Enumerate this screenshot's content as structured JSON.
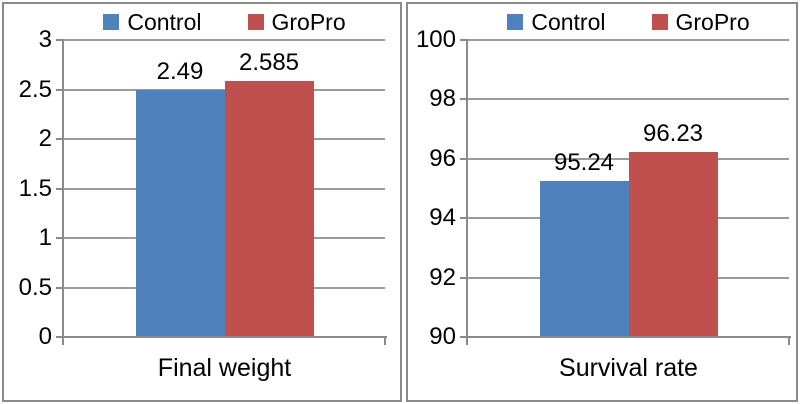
{
  "figure": {
    "background": "#ffffff",
    "panel_border_color": "#8a8a8a",
    "gridline_color": "#9b9b9b",
    "axis_color": "#8a8a8a",
    "text_color": "#000000"
  },
  "chart_data": [
    {
      "type": "bar",
      "title": "",
      "categories": [
        "Final weight"
      ],
      "xlabel": "Final weight",
      "ylabel": "",
      "series": [
        {
          "name": "Control",
          "values": [
            2.49
          ],
          "color": "#4F81BD",
          "data_labels": [
            "2.49"
          ]
        },
        {
          "name": "GroPro",
          "values": [
            2.585
          ],
          "color": "#C0504D",
          "data_labels": [
            "2.585"
          ]
        }
      ],
      "ylim": [
        0,
        3
      ],
      "ytick_interval": 0.5,
      "ytick_labels": [
        "0",
        "0.5",
        "1",
        "1.5",
        "2",
        "2.5",
        "3"
      ],
      "grid": true,
      "legend_position": "top"
    },
    {
      "type": "bar",
      "title": "",
      "categories": [
        "Survival rate"
      ],
      "xlabel": "Survival rate",
      "ylabel": "",
      "series": [
        {
          "name": "Control",
          "values": [
            95.24
          ],
          "color": "#4F81BD",
          "data_labels": [
            "95.24"
          ]
        },
        {
          "name": "GroPro",
          "values": [
            96.23
          ],
          "color": "#C0504D",
          "data_labels": [
            "96.23"
          ]
        }
      ],
      "ylim": [
        90,
        100
      ],
      "ytick_interval": 2,
      "ytick_labels": [
        "90",
        "92",
        "94",
        "96",
        "98",
        "100"
      ],
      "grid": true,
      "legend_position": "top"
    }
  ]
}
